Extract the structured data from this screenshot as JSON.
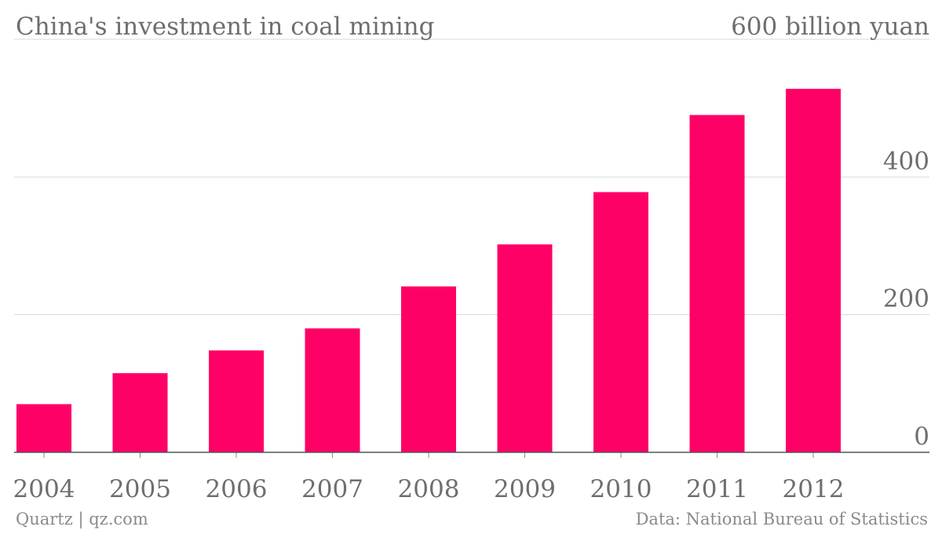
{
  "chart_data": {
    "type": "bar",
    "title": "China's investment in coal mining",
    "unit_label": "600 billion yuan",
    "categories": [
      "2004",
      "2005",
      "2006",
      "2007",
      "2008",
      "2009",
      "2010",
      "2011",
      "2012"
    ],
    "series": [
      {
        "values": [
          70,
          115,
          148,
          180,
          241,
          302,
          378,
          490,
          528
        ]
      }
    ],
    "ylim": [
      0,
      600
    ],
    "yticks": [
      {
        "value": 0,
        "label": "0"
      },
      {
        "value": 200,
        "label": "200"
      },
      {
        "value": 400,
        "label": "400"
      }
    ],
    "ytick_position": "right",
    "grid": true,
    "legend": "none",
    "colors": {
      "bar": "#ff0066",
      "text": "#6e6e6e",
      "grid": "#d9d9d9"
    }
  },
  "footer": {
    "source_left": "Quartz | qz.com",
    "source_right": "Data: National Bureau of Statistics"
  }
}
